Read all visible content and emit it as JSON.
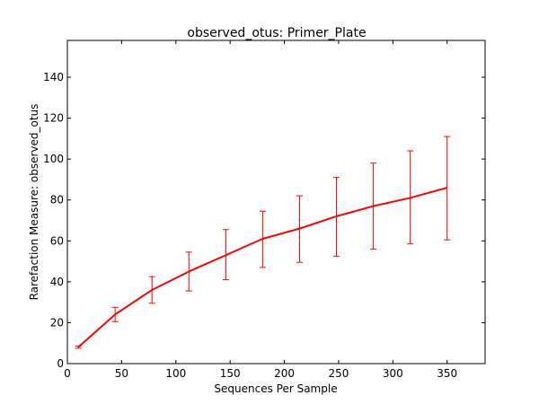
{
  "chart_data": {
    "type": "line",
    "title": "observed_otus: Primer_Plate",
    "xlabel": "Sequences Per Sample",
    "ylabel": "Rarefaction Measure: observed_otus",
    "xlim": [
      0,
      385
    ],
    "ylim": [
      0,
      158
    ],
    "xticks": [
      0,
      50,
      100,
      150,
      200,
      250,
      300,
      350
    ],
    "yticks": [
      0,
      20,
      40,
      60,
      80,
      100,
      120,
      140
    ],
    "grid": false,
    "series": [
      {
        "color": "#ff0000",
        "points": [
          {
            "x": 10,
            "y": 8,
            "err_low": 7.5,
            "err_high": 8.5
          },
          {
            "x": 44,
            "y": 24,
            "err_low": 20.5,
            "err_high": 27.5
          },
          {
            "x": 78,
            "y": 36,
            "err_low": 29.5,
            "err_high": 42.5
          },
          {
            "x": 112,
            "y": 45,
            "err_low": 35.5,
            "err_high": 54.5
          },
          {
            "x": 146,
            "y": 53,
            "err_low": 41,
            "err_high": 65.5
          },
          {
            "x": 180,
            "y": 61,
            "err_low": 47,
            "err_high": 74.5
          },
          {
            "x": 214,
            "y": 66,
            "err_low": 49.5,
            "err_high": 82
          },
          {
            "x": 248,
            "y": 72,
            "err_low": 52.5,
            "err_high": 91
          },
          {
            "x": 282,
            "y": 77,
            "err_low": 56,
            "err_high": 98
          },
          {
            "x": 316,
            "y": 81,
            "err_low": 58.5,
            "err_high": 104
          },
          {
            "x": 350,
            "y": 86,
            "err_low": 60.5,
            "err_high": 111
          }
        ]
      }
    ]
  }
}
